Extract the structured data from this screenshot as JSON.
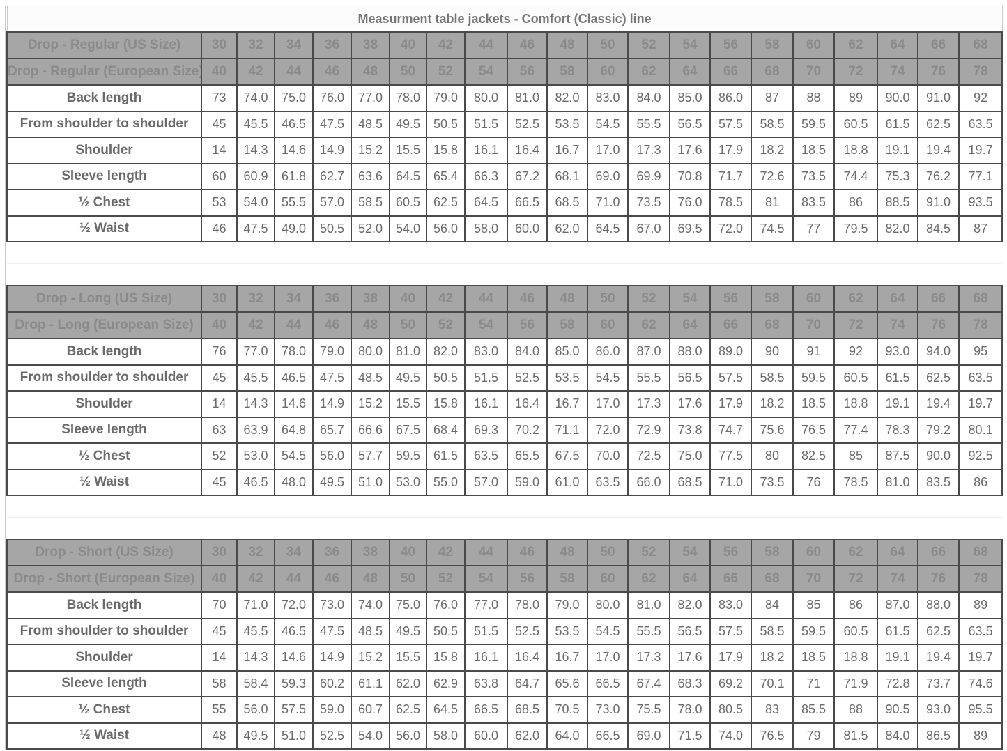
{
  "title": "Measurment table jackets - Comfort (Classic) line",
  "sections": [
    {
      "us_label": "Drop - Regular (US Size)",
      "eu_label": "Drop - Regular (European Size)",
      "us_sizes": [
        "30",
        "32",
        "34",
        "36",
        "38",
        "40",
        "42",
        "44",
        "46",
        "48",
        "50",
        "52",
        "54",
        "56",
        "58",
        "60",
        "62",
        "64",
        "66",
        "68"
      ],
      "eu_sizes": [
        "40",
        "42",
        "44",
        "46",
        "48",
        "50",
        "52",
        "54",
        "56",
        "58",
        "60",
        "62",
        "64",
        "66",
        "68",
        "70",
        "72",
        "74",
        "76",
        "78"
      ],
      "rows": [
        {
          "label": "Back length",
          "values": [
            "73",
            "74.0",
            "75.0",
            "76.0",
            "77.0",
            "78.0",
            "79.0",
            "80.0",
            "81.0",
            "82.0",
            "83.0",
            "84.0",
            "85.0",
            "86.0",
            "87",
            "88",
            "89",
            "90.0",
            "91.0",
            "92"
          ]
        },
        {
          "label": "From shoulder to shoulder",
          "values": [
            "45",
            "45.5",
            "46.5",
            "47.5",
            "48.5",
            "49.5",
            "50.5",
            "51.5",
            "52.5",
            "53.5",
            "54.5",
            "55.5",
            "56.5",
            "57.5",
            "58.5",
            "59.5",
            "60.5",
            "61.5",
            "62.5",
            "63.5"
          ]
        },
        {
          "label": "Shoulder",
          "values": [
            "14",
            "14.3",
            "14.6",
            "14.9",
            "15.2",
            "15.5",
            "15.8",
            "16.1",
            "16.4",
            "16.7",
            "17.0",
            "17.3",
            "17.6",
            "17.9",
            "18.2",
            "18.5",
            "18.8",
            "19.1",
            "19.4",
            "19.7"
          ]
        },
        {
          "label": "Sleeve length",
          "values": [
            "60",
            "60.9",
            "61.8",
            "62.7",
            "63.6",
            "64.5",
            "65.4",
            "66.3",
            "67.2",
            "68.1",
            "69.0",
            "69.9",
            "70.8",
            "71.7",
            "72.6",
            "73.5",
            "74.4",
            "75.3",
            "76.2",
            "77.1"
          ]
        },
        {
          "label": "½ Chest",
          "values": [
            "53",
            "54.0",
            "55.5",
            "57.0",
            "58.5",
            "60.5",
            "62.5",
            "64.5",
            "66.5",
            "68.5",
            "71.0",
            "73.5",
            "76.0",
            "78.5",
            "81",
            "83.5",
            "86",
            "88.5",
            "91.0",
            "93.5"
          ]
        },
        {
          "label": "½ Waist",
          "values": [
            "46",
            "47.5",
            "49.0",
            "50.5",
            "52.0",
            "54.0",
            "56.0",
            "58.0",
            "60.0",
            "62.0",
            "64.5",
            "67.0",
            "69.5",
            "72.0",
            "74.5",
            "77",
            "79.5",
            "82.0",
            "84.5",
            "87"
          ]
        }
      ]
    },
    {
      "us_label": "Drop - Long (US Size)",
      "eu_label": "Drop - Long (European Size)",
      "us_sizes": [
        "30",
        "32",
        "34",
        "36",
        "38",
        "40",
        "42",
        "44",
        "46",
        "48",
        "50",
        "52",
        "54",
        "56",
        "58",
        "60",
        "62",
        "64",
        "66",
        "68"
      ],
      "eu_sizes": [
        "40",
        "42",
        "44",
        "46",
        "48",
        "50",
        "52",
        "54",
        "56",
        "58",
        "60",
        "62",
        "64",
        "66",
        "68",
        "70",
        "72",
        "74",
        "76",
        "78"
      ],
      "rows": [
        {
          "label": "Back length",
          "values": [
            "76",
            "77.0",
            "78.0",
            "79.0",
            "80.0",
            "81.0",
            "82.0",
            "83.0",
            "84.0",
            "85.0",
            "86.0",
            "87.0",
            "88.0",
            "89.0",
            "90",
            "91",
            "92",
            "93.0",
            "94.0",
            "95"
          ]
        },
        {
          "label": "From shoulder to shoulder",
          "values": [
            "45",
            "45.5",
            "46.5",
            "47.5",
            "48.5",
            "49.5",
            "50.5",
            "51.5",
            "52.5",
            "53.5",
            "54.5",
            "55.5",
            "56.5",
            "57.5",
            "58.5",
            "59.5",
            "60.5",
            "61.5",
            "62.5",
            "63.5"
          ]
        },
        {
          "label": "Shoulder",
          "values": [
            "14",
            "14.3",
            "14.6",
            "14.9",
            "15.2",
            "15.5",
            "15.8",
            "16.1",
            "16.4",
            "16.7",
            "17.0",
            "17.3",
            "17.6",
            "17.9",
            "18.2",
            "18.5",
            "18.8",
            "19.1",
            "19.4",
            "19.7"
          ]
        },
        {
          "label": "Sleeve length",
          "values": [
            "63",
            "63.9",
            "64.8",
            "65.7",
            "66.6",
            "67.5",
            "68.4",
            "69.3",
            "70.2",
            "71.1",
            "72.0",
            "72.9",
            "73.8",
            "74.7",
            "75.6",
            "76.5",
            "77.4",
            "78.3",
            "79.2",
            "80.1"
          ]
        },
        {
          "label": "½ Chest",
          "values": [
            "52",
            "53.0",
            "54.5",
            "56.0",
            "57.7",
            "59.5",
            "61.5",
            "63.5",
            "65.5",
            "67.5",
            "70.0",
            "72.5",
            "75.0",
            "77.5",
            "80",
            "82.5",
            "85",
            "87.5",
            "90.0",
            "92.5"
          ]
        },
        {
          "label": "½ Waist",
          "values": [
            "45",
            "46.5",
            "48.0",
            "49.5",
            "51.0",
            "53.0",
            "55.0",
            "57.0",
            "59.0",
            "61.0",
            "63.5",
            "66.0",
            "68.5",
            "71.0",
            "73.5",
            "76",
            "78.5",
            "81.0",
            "83.5",
            "86"
          ]
        }
      ]
    },
    {
      "us_label": "Drop - Short (US Size)",
      "eu_label": "Drop - Short (European Size)",
      "us_sizes": [
        "30",
        "32",
        "34",
        "36",
        "38",
        "40",
        "42",
        "44",
        "46",
        "48",
        "50",
        "52",
        "54",
        "56",
        "58",
        "60",
        "62",
        "64",
        "66",
        "68"
      ],
      "eu_sizes": [
        "40",
        "42",
        "44",
        "46",
        "48",
        "50",
        "52",
        "54",
        "56",
        "58",
        "60",
        "62",
        "64",
        "66",
        "68",
        "70",
        "72",
        "74",
        "76",
        "78"
      ],
      "rows": [
        {
          "label": "Back length",
          "values": [
            "70",
            "71.0",
            "72.0",
            "73.0",
            "74.0",
            "75.0",
            "76.0",
            "77.0",
            "78.0",
            "79.0",
            "80.0",
            "81.0",
            "82.0",
            "83.0",
            "84",
            "85",
            "86",
            "87.0",
            "88.0",
            "89"
          ]
        },
        {
          "label": "From shoulder to shoulder",
          "values": [
            "45",
            "45.5",
            "46.5",
            "47.5",
            "48.5",
            "49.5",
            "50.5",
            "51.5",
            "52.5",
            "53.5",
            "54.5",
            "55.5",
            "56.5",
            "57.5",
            "58.5",
            "59.5",
            "60.5",
            "61.5",
            "62.5",
            "63.5"
          ]
        },
        {
          "label": "Shoulder",
          "values": [
            "14",
            "14.3",
            "14.6",
            "14.9",
            "15.2",
            "15.5",
            "15.8",
            "16.1",
            "16.4",
            "16.7",
            "17.0",
            "17.3",
            "17.6",
            "17.9",
            "18.2",
            "18.5",
            "18.8",
            "19.1",
            "19.4",
            "19.7"
          ]
        },
        {
          "label": "Sleeve length",
          "values": [
            "58",
            "58.4",
            "59.3",
            "60.2",
            "61.1",
            "62.0",
            "62.9",
            "63.8",
            "64.7",
            "65.6",
            "66.5",
            "67.4",
            "68.3",
            "69.2",
            "70.1",
            "71",
            "71.9",
            "72.8",
            "73.7",
            "74.6"
          ]
        },
        {
          "label": "½ Chest",
          "values": [
            "55",
            "56.0",
            "57.5",
            "59.0",
            "60.7",
            "62.5",
            "64.5",
            "66.5",
            "68.5",
            "70.5",
            "73.0",
            "75.5",
            "78.0",
            "80.5",
            "83",
            "85.5",
            "88",
            "90.5",
            "93.0",
            "95.5"
          ]
        },
        {
          "label": "½ Waist",
          "values": [
            "48",
            "49.5",
            "51.0",
            "52.5",
            "54.0",
            "56.0",
            "58.0",
            "60.0",
            "62.0",
            "64.0",
            "66.5",
            "69.0",
            "71.5",
            "74.0",
            "76.5",
            "79",
            "81.5",
            "84.0",
            "86.5",
            "89"
          ]
        }
      ]
    }
  ]
}
